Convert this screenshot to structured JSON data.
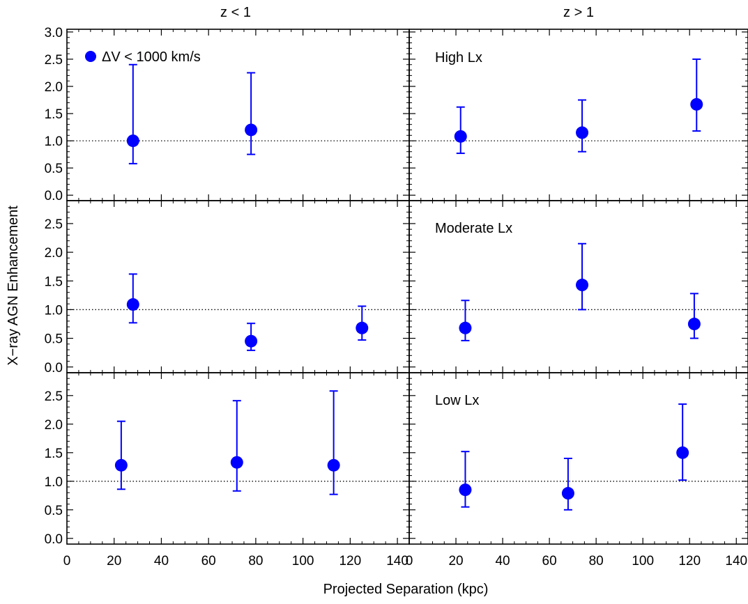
{
  "chart_data": {
    "type": "scatter",
    "layout": "3 rows x 2 columns, shared x axis per column, shared y axis per row",
    "column_titles": [
      "z < 1",
      "z > 1"
    ],
    "row_labels": [
      "High Lx",
      "Moderate Lx",
      "Low Lx"
    ],
    "xlabel": "Projected Separation (kpc)",
    "ylabel": "X−ray AGN Enhancement",
    "legend": {
      "label": "ΔV < 1000 km/s",
      "placement": "top-left of first panel",
      "color": "#0000ff"
    },
    "marker_color": "#0000ff",
    "reference_line": {
      "y": 1.0,
      "style": "dotted"
    },
    "xlim": [
      0,
      145
    ],
    "ylim_top_row": [
      -0.1,
      3.05
    ],
    "ylim_other_rows": [
      -0.1,
      2.9
    ],
    "x_ticks": [
      0,
      20,
      40,
      60,
      80,
      100,
      120,
      140
    ],
    "y_ticks_top_row": [
      "0.0",
      "0.5",
      "1.0",
      "1.5",
      "2.0",
      "2.5",
      "3.0"
    ],
    "y_ticks_other_rows": [
      "0.0",
      "0.5",
      "1.0",
      "1.5",
      "2.0",
      "2.5"
    ],
    "panels": [
      {
        "row": 0,
        "col": 0,
        "points": [
          {
            "x": 28,
            "y": 1.0,
            "ylo": 0.58,
            "yhi": 2.4
          },
          {
            "x": 78,
            "y": 1.2,
            "ylo": 0.75,
            "yhi": 2.25
          }
        ]
      },
      {
        "row": 0,
        "col": 1,
        "points": [
          {
            "x": 22,
            "y": 1.08,
            "ylo": 0.77,
            "yhi": 1.62
          },
          {
            "x": 74,
            "y": 1.15,
            "ylo": 0.8,
            "yhi": 1.75
          },
          {
            "x": 123,
            "y": 1.67,
            "ylo": 1.18,
            "yhi": 2.5
          }
        ]
      },
      {
        "row": 1,
        "col": 0,
        "points": [
          {
            "x": 28,
            "y": 1.09,
            "ylo": 0.77,
            "yhi": 1.62
          },
          {
            "x": 78,
            "y": 0.45,
            "ylo": 0.29,
            "yhi": 0.76
          },
          {
            "x": 125,
            "y": 0.68,
            "ylo": 0.47,
            "yhi": 1.06
          }
        ]
      },
      {
        "row": 1,
        "col": 1,
        "points": [
          {
            "x": 24,
            "y": 0.68,
            "ylo": 0.46,
            "yhi": 1.16
          },
          {
            "x": 74,
            "y": 1.43,
            "ylo": 1.0,
            "yhi": 2.15
          },
          {
            "x": 122,
            "y": 0.75,
            "ylo": 0.5,
            "yhi": 1.28
          }
        ]
      },
      {
        "row": 2,
        "col": 0,
        "points": [
          {
            "x": 23,
            "y": 1.28,
            "ylo": 0.86,
            "yhi": 2.05
          },
          {
            "x": 72,
            "y": 1.33,
            "ylo": 0.83,
            "yhi": 2.41
          },
          {
            "x": 113,
            "y": 1.28,
            "ylo": 0.77,
            "yhi": 2.58
          }
        ]
      },
      {
        "row": 2,
        "col": 1,
        "points": [
          {
            "x": 24,
            "y": 0.85,
            "ylo": 0.55,
            "yhi": 1.52
          },
          {
            "x": 68,
            "y": 0.79,
            "ylo": 0.5,
            "yhi": 1.4
          },
          {
            "x": 117,
            "y": 1.5,
            "ylo": 1.02,
            "yhi": 2.35
          }
        ]
      }
    ]
  }
}
